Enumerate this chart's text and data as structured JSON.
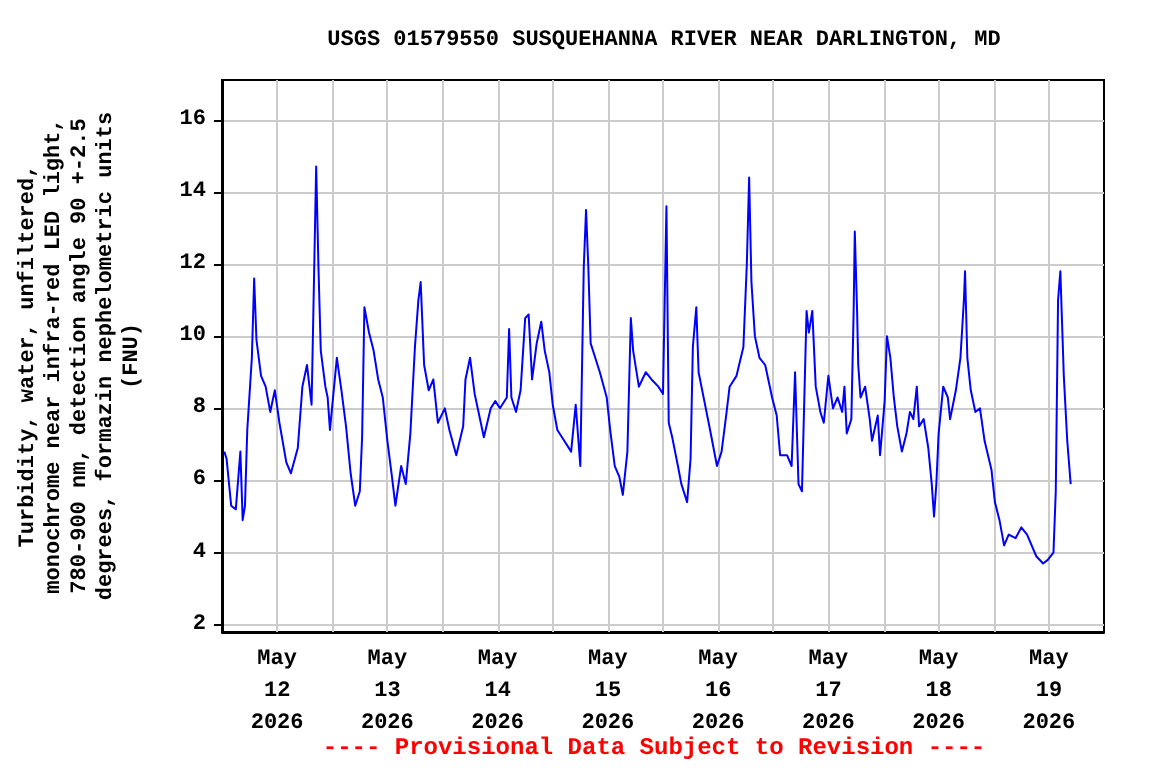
{
  "chart_data": {
    "type": "line",
    "title": "USGS 01579550 SUSQUEHANNA RIVER NEAR DARLINGTON, MD",
    "ylabel": "Turbidity, water, unfiltered,\nmonochrome near infra-red LED light,\n780-900 nm, detection angle 90 +-2.5\ndegrees, formazin nephelometric units\n(FNU)",
    "annotations": [
      "---- Provisional Data Subject to Revision ----"
    ],
    "x": [
      "2026-05-12T00:30",
      "2026-05-12T01:00",
      "2026-05-12T02:00",
      "2026-05-12T03:00",
      "2026-05-12T04:00",
      "2026-05-12T04:30",
      "2026-05-12T05:00",
      "2026-05-12T05:30",
      "2026-05-12T06:30",
      "2026-05-12T07:00",
      "2026-05-12T07:30",
      "2026-05-12T08:30",
      "2026-05-12T09:30",
      "2026-05-12T10:30",
      "2026-05-12T11:30",
      "2026-05-12T12:30",
      "2026-05-12T14:00",
      "2026-05-12T15:00",
      "2026-05-12T16:30",
      "2026-05-12T17:30",
      "2026-05-12T18:30",
      "2026-05-12T19:30",
      "2026-05-12T20:30",
      "2026-05-12T21:00",
      "2026-05-12T21:30",
      "2026-05-12T22:30",
      "2026-05-12T23:00",
      "2026-05-12T23:30",
      "2026-05-13T01:00",
      "2026-05-13T02:00",
      "2026-05-13T03:00",
      "2026-05-13T04:00",
      "2026-05-13T05:00",
      "2026-05-13T06:00",
      "2026-05-13T06:30",
      "2026-05-13T07:00",
      "2026-05-13T08:00",
      "2026-05-13T09:00",
      "2026-05-13T10:00",
      "2026-05-13T11:00",
      "2026-05-13T12:00",
      "2026-05-13T13:00",
      "2026-05-13T13:45",
      "2026-05-13T15:00",
      "2026-05-13T16:00",
      "2026-05-13T17:00",
      "2026-05-13T18:00",
      "2026-05-13T18:45",
      "2026-05-13T19:15",
      "2026-05-13T20:00",
      "2026-05-13T21:00",
      "2026-05-13T22:00",
      "2026-05-13T23:00",
      "2026-05-14T00:30",
      "2026-05-14T01:30",
      "2026-05-14T03:00",
      "2026-05-14T04:30",
      "2026-05-14T05:00",
      "2026-05-14T06:00",
      "2026-05-14T07:00",
      "2026-05-14T08:00",
      "2026-05-14T09:00",
      "2026-05-14T10:30",
      "2026-05-14T11:30",
      "2026-05-14T12:30",
      "2026-05-14T14:00",
      "2026-05-14T14:30",
      "2026-05-14T15:00",
      "2026-05-14T16:00",
      "2026-05-14T17:00",
      "2026-05-14T18:00",
      "2026-05-14T18:45",
      "2026-05-14T19:30",
      "2026-05-14T20:30",
      "2026-05-14T21:30",
      "2026-05-14T22:15",
      "2026-05-14T23:15",
      "2026-05-15T00:00",
      "2026-05-15T01:00",
      "2026-05-15T02:30",
      "2026-05-15T04:00",
      "2026-05-15T05:00",
      "2026-05-15T06:00",
      "2026-05-15T06:45",
      "2026-05-15T07:15",
      "2026-05-15T07:45",
      "2026-05-15T08:15",
      "2026-05-15T09:15",
      "2026-05-15T10:15",
      "2026-05-15T11:45",
      "2026-05-15T12:30",
      "2026-05-15T13:30",
      "2026-05-15T14:30",
      "2026-05-15T15:15",
      "2026-05-15T16:15",
      "2026-05-15T17:00",
      "2026-05-15T17:30",
      "2026-05-15T18:45",
      "2026-05-15T20:15",
      "2026-05-15T21:30",
      "2026-05-15T23:00",
      "2026-05-16T00:00",
      "2026-05-16T00:45",
      "2026-05-16T01:15",
      "2026-05-16T02:00",
      "2026-05-16T03:15",
      "2026-05-16T04:00",
      "2026-05-16T05:15",
      "2026-05-16T06:00",
      "2026-05-16T06:30",
      "2026-05-16T07:15",
      "2026-05-16T07:45",
      "2026-05-16T09:00",
      "2026-05-16T10:15",
      "2026-05-16T11:45",
      "2026-05-16T12:45",
      "2026-05-16T13:45",
      "2026-05-16T14:30",
      "2026-05-16T16:00",
      "2026-05-16T17:30",
      "2026-05-16T18:15",
      "2026-05-16T18:45",
      "2026-05-16T19:15",
      "2026-05-16T20:00",
      "2026-05-16T21:00",
      "2026-05-16T22:15",
      "2026-05-16T23:45",
      "2026-05-17T00:45",
      "2026-05-17T01:30",
      "2026-05-17T03:00",
      "2026-05-17T04:00",
      "2026-05-17T04:45",
      "2026-05-17T05:30",
      "2026-05-17T06:15",
      "2026-05-17T07:15",
      "2026-05-17T07:45",
      "2026-05-17T08:30",
      "2026-05-17T09:15",
      "2026-05-17T10:15",
      "2026-05-17T11:00",
      "2026-05-17T12:00",
      "2026-05-17T13:00",
      "2026-05-17T14:00",
      "2026-05-17T15:00",
      "2026-05-17T15:30",
      "2026-05-17T16:00",
      "2026-05-17T17:00",
      "2026-05-17T17:30",
      "2026-05-17T17:45",
      "2026-05-17T18:15",
      "2026-05-17T18:30",
      "2026-05-17T19:00",
      "2026-05-17T20:00",
      "2026-05-17T21:00",
      "2026-05-17T21:30",
      "2026-05-17T22:45",
      "2026-05-17T23:15",
      "2026-05-18T00:15",
      "2026-05-18T00:45",
      "2026-05-18T01:30",
      "2026-05-18T02:15",
      "2026-05-18T03:00",
      "2026-05-18T04:00",
      "2026-05-18T05:00",
      "2026-05-18T05:45",
      "2026-05-18T06:30",
      "2026-05-18T07:15",
      "2026-05-18T07:45",
      "2026-05-18T08:45",
      "2026-05-18T09:45",
      "2026-05-18T10:30",
      "2026-05-18T11:00",
      "2026-05-18T11:30",
      "2026-05-18T12:00",
      "2026-05-18T13:00",
      "2026-05-18T14:00",
      "2026-05-18T14:30",
      "2026-05-18T15:45",
      "2026-05-18T16:45",
      "2026-05-18T17:30",
      "2026-05-18T17:45",
      "2026-05-18T18:15",
      "2026-05-18T19:00",
      "2026-05-18T20:00",
      "2026-05-18T21:00",
      "2026-05-18T22:00",
      "2026-05-18T22:45",
      "2026-05-18T23:30",
      "2026-05-19T00:15",
      "2026-05-19T01:15",
      "2026-05-19T02:15",
      "2026-05-19T03:15",
      "2026-05-19T04:45",
      "2026-05-19T06:00",
      "2026-05-19T07:15",
      "2026-05-19T08:15",
      "2026-05-19T09:15",
      "2026-05-19T10:45",
      "2026-05-19T11:45",
      "2026-05-19T13:00",
      "2026-05-19T13:30",
      "2026-05-19T14:00",
      "2026-05-19T14:30",
      "2026-05-19T15:15",
      "2026-05-19T16:00",
      "2026-05-19T16:45"
    ],
    "series": [
      {
        "color": "#0000ff",
        "values": [
          6.8,
          6.6,
          5.3,
          5.2,
          6.8,
          4.9,
          5.3,
          7.4,
          9.4,
          11.6,
          9.9,
          8.9,
          8.6,
          7.9,
          8.5,
          7.6,
          6.5,
          6.2,
          6.9,
          8.6,
          9.2,
          8.1,
          14.7,
          11.9,
          9.6,
          8.6,
          8.3,
          7.4,
          9.4,
          8.5,
          7.5,
          6.2,
          5.3,
          5.7,
          7.2,
          10.8,
          10.1,
          9.6,
          8.8,
          8.3,
          7.1,
          6.1,
          5.3,
          6.4,
          5.9,
          7.3,
          9.7,
          11.0,
          11.5,
          9.2,
          8.5,
          8.8,
          7.6,
          8.0,
          7.4,
          6.7,
          7.5,
          8.8,
          9.4,
          8.4,
          7.8,
          7.2,
          8.0,
          8.2,
          8.0,
          8.3,
          10.2,
          8.3,
          7.9,
          8.5,
          10.5,
          10.6,
          8.8,
          9.8,
          10.4,
          9.6,
          9.0,
          8.1,
          7.4,
          7.1,
          6.8,
          8.1,
          6.4,
          11.9,
          13.5,
          11.9,
          9.8,
          9.4,
          9.0,
          8.3,
          7.4,
          6.4,
          6.1,
          5.6,
          6.8,
          10.5,
          9.6,
          8.6,
          9.0,
          8.8,
          8.6,
          8.4,
          13.6,
          7.6,
          7.2,
          6.4,
          5.9,
          5.4,
          6.6,
          9.7,
          10.8,
          9.0,
          8.2,
          7.4,
          6.4,
          6.8,
          7.8,
          8.6,
          8.9,
          9.7,
          12.0,
          14.4,
          11.5,
          10.0,
          9.4,
          9.2,
          8.3,
          7.8,
          6.7,
          6.7,
          6.4,
          9.0,
          5.9,
          5.7,
          10.7,
          10.1,
          10.7,
          8.6,
          7.9,
          7.6,
          8.9,
          8.0,
          8.3,
          7.9,
          8.6,
          7.3,
          7.7,
          10.7,
          12.9,
          10.7,
          9.2,
          8.3,
          8.6,
          7.7,
          7.1,
          7.8,
          6.7,
          8.2,
          10.0,
          9.4,
          8.3,
          7.5,
          6.8,
          7.3,
          7.9,
          7.7,
          8.6,
          7.5,
          7.7,
          6.9,
          5.9,
          5.0,
          5.9,
          7.3,
          8.6,
          8.3,
          7.7,
          8.5,
          9.4,
          11.0,
          11.8,
          9.4,
          8.5,
          7.9,
          8.0,
          7.1,
          6.7,
          6.3,
          5.4,
          4.9,
          4.2,
          4.5,
          4.4,
          4.7,
          4.5,
          4.2,
          3.9,
          3.7,
          3.8,
          4.0,
          5.7,
          11.0,
          11.8,
          8.9,
          7.1,
          5.9
        ]
      }
    ],
    "xlim": [
      "2026-05-12T00:00",
      "2026-05-20T00:00"
    ],
    "xticks": [
      {
        "value": "2026-05-12T12:00",
        "label": "May\n12\n2026"
      },
      {
        "value": "2026-05-13T00:00",
        "label": null
      },
      {
        "value": "2026-05-13T12:00",
        "label": "May\n13\n2026"
      },
      {
        "value": "2026-05-14T00:00",
        "label": null
      },
      {
        "value": "2026-05-14T12:00",
        "label": "May\n14\n2026"
      },
      {
        "value": "2026-05-15T00:00",
        "label": null
      },
      {
        "value": "2026-05-15T12:00",
        "label": "May\n15\n2026"
      },
      {
        "value": "2026-05-16T00:00",
        "label": null
      },
      {
        "value": "2026-05-16T12:00",
        "label": "May\n16\n2026"
      },
      {
        "value": "2026-05-17T00:00",
        "label": null
      },
      {
        "value": "2026-05-17T12:00",
        "label": "May\n17\n2026"
      },
      {
        "value": "2026-05-18T00:00",
        "label": null
      },
      {
        "value": "2026-05-18T12:00",
        "label": "May\n18\n2026"
      },
      {
        "value": "2026-05-19T00:00",
        "label": null
      },
      {
        "value": "2026-05-19T12:00",
        "label": "May\n19\n2026"
      }
    ],
    "ylim": [
      1.8,
      17.1
    ],
    "yticks": [
      2,
      4,
      6,
      8,
      10,
      12,
      14,
      16
    ],
    "grid": true,
    "marker": "none",
    "line_style": "solid"
  }
}
